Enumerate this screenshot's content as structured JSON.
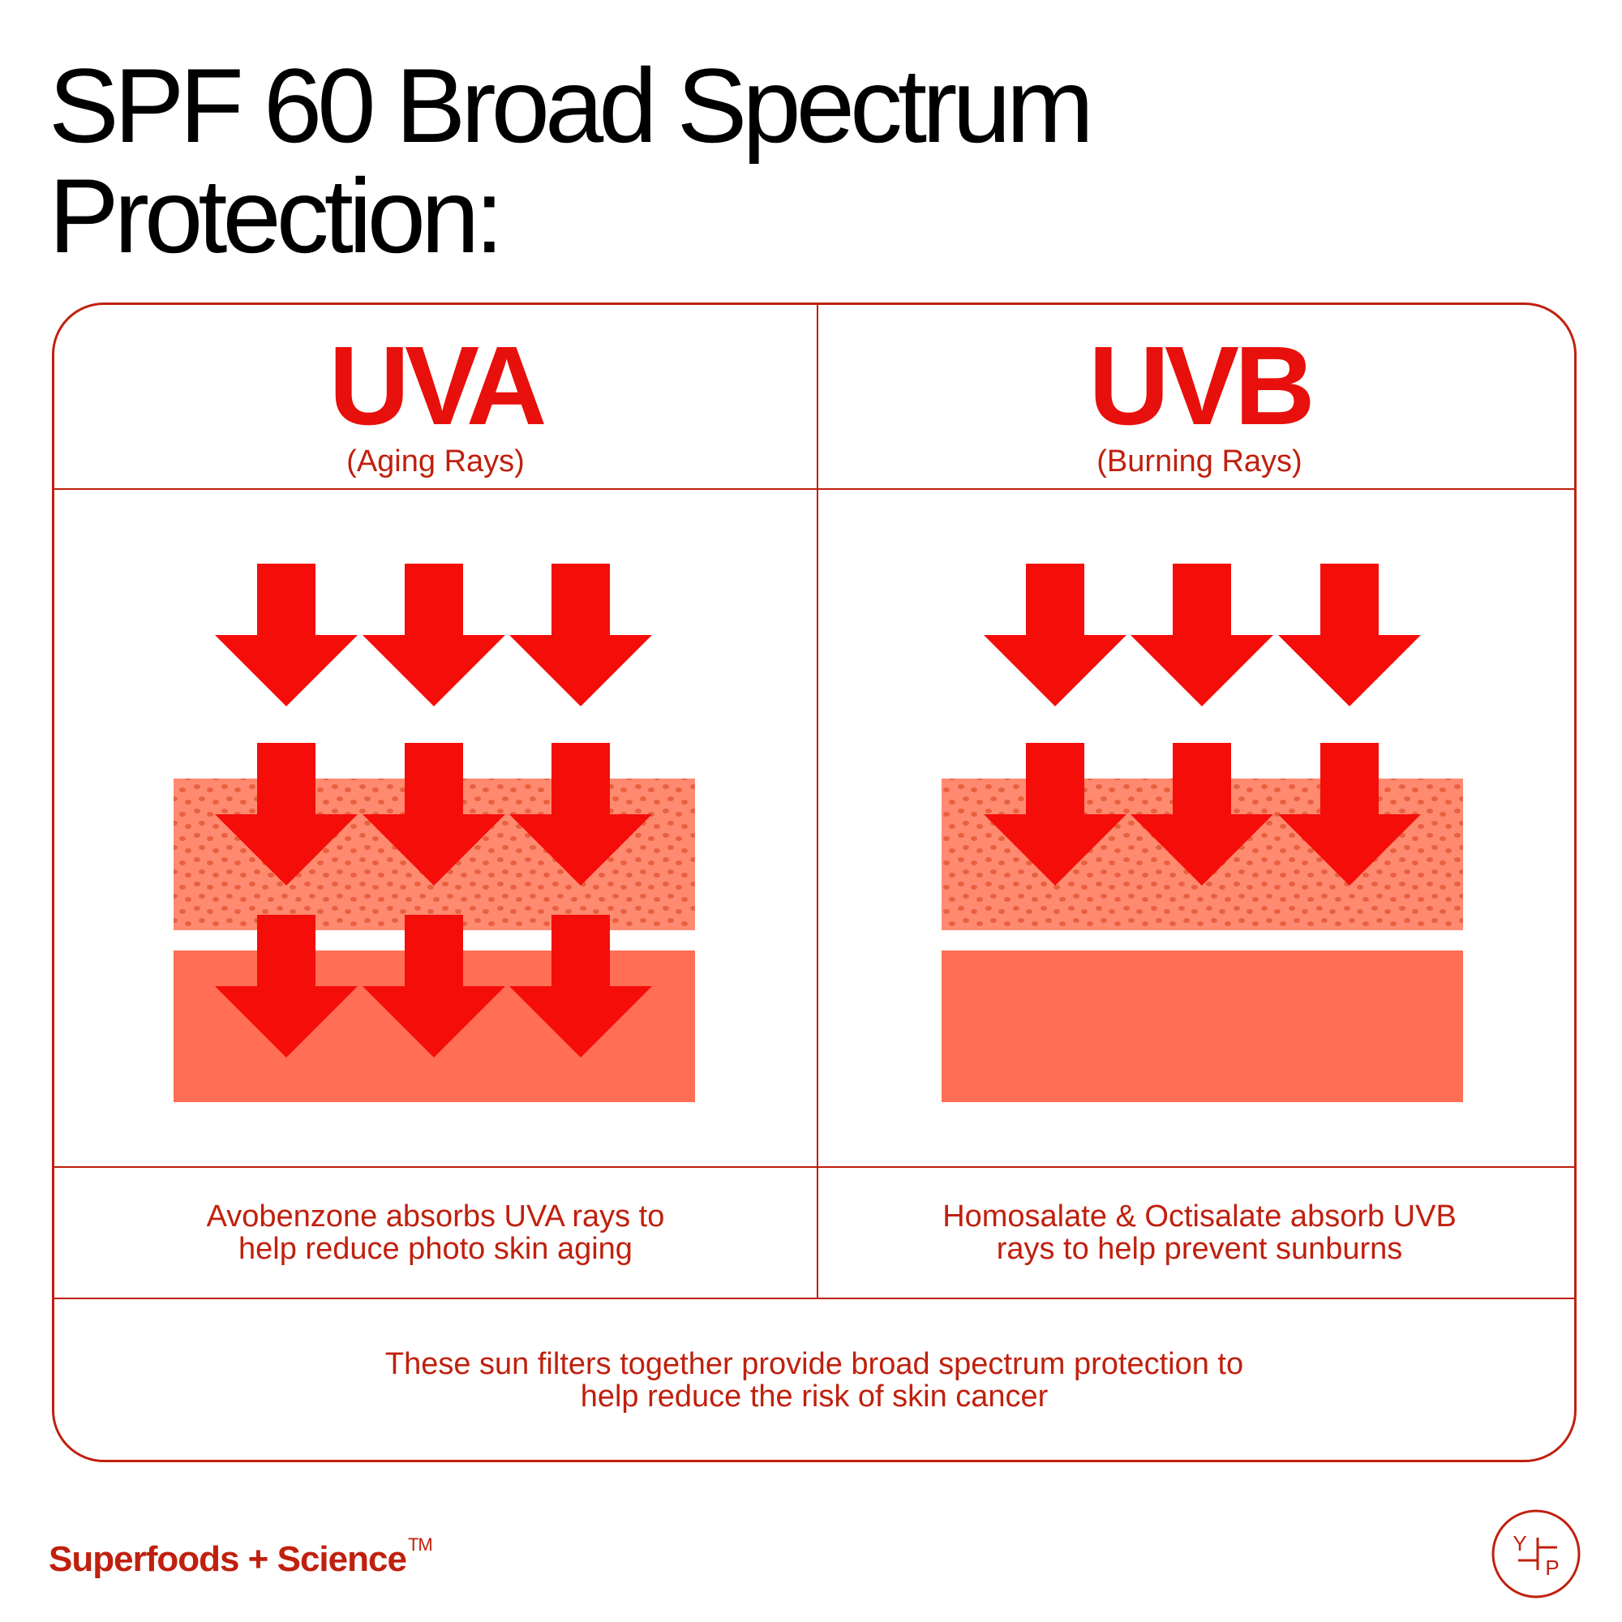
{
  "headline": {
    "line1": "SPF 60 Broad Spectrum",
    "line2": "Protection:"
  },
  "columns": [
    {
      "title": "UVA",
      "subtitle": "(Aging Rays)",
      "caption": "Avobenzone absorbs UVA rays to help reduce photo skin aging"
    },
    {
      "title": "UVB",
      "subtitle": "(Burning Rays)",
      "caption": "Homosalate & Octisalate absorb UVB rays to help prevent sunburns"
    }
  ],
  "summary": "These sun filters together provide broad spectrum protection to help reduce the risk of skin cancer",
  "brand": {
    "name": "Superfoods + Science",
    "trademark": "TM"
  },
  "logo": {
    "letters": [
      "Y",
      "P"
    ]
  },
  "colors": {
    "accent": "#c0200e",
    "arrow": "#f50d0a",
    "skin_outer": "#ff8a70",
    "skin_dots": "#e8613f",
    "skin_inner": "#ff6e55"
  }
}
